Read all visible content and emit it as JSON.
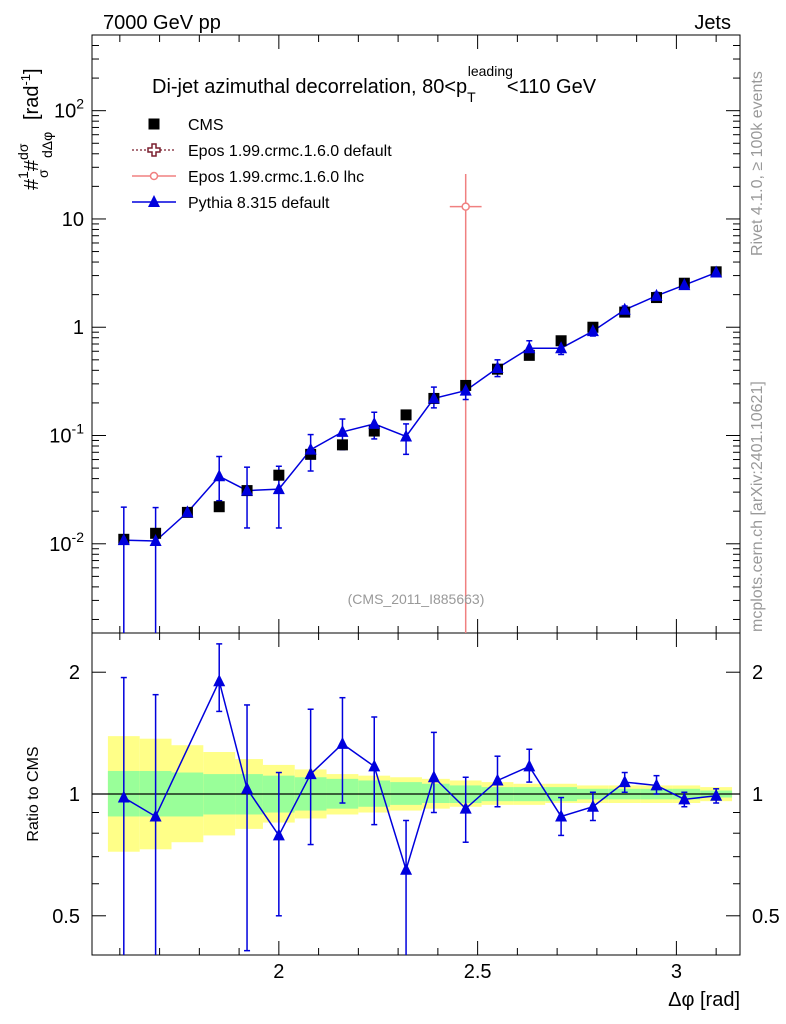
{
  "header": {
    "left": "7000 GeV pp",
    "right": "Jets"
  },
  "side_labels": {
    "rivet": "Rivet 4.1.0, ≥ 100k events",
    "mcplots": "mcplots.cern.ch [arXiv:2401.10621]"
  },
  "chart_data": [
    {
      "type": "scatter",
      "title": "Di-jet azimuthal decorrelation, 80<p_T^leading<110 GeV",
      "title_parts": {
        "pre": "Di-jet azimuthal decorrelation, 80<p",
        "sub": "T",
        "sup": "leading",
        "post": "<110 GeV"
      },
      "analysis_id": "(CMS_2011_I885663)",
      "ylabel": "1/σ dσ/dΔφ [rad⁻¹]",
      "ylabel_unit": "[rad",
      "ylabel_unit_exp": "-1",
      "yscale": "log",
      "xlim": [
        1.53,
        3.16
      ],
      "ylim": [
        0.0015,
        500
      ],
      "yticks": [
        {
          "value": 0.01,
          "base": "10",
          "exp": "-2"
        },
        {
          "value": 0.1,
          "base": "10",
          "exp": "-1"
        },
        {
          "value": 1,
          "label": "1"
        },
        {
          "value": 10,
          "label": "10"
        },
        {
          "value": 100,
          "base": "10",
          "exp": "2"
        }
      ],
      "legend": [
        {
          "name": "CMS",
          "marker": "square",
          "color": "#000000"
        },
        {
          "name": "Epos 1.99.crmc.1.6.0 default",
          "marker": "open-cross",
          "color": "#7a1f2e"
        },
        {
          "name": "Epos 1.99.crmc.1.6.0 lhc",
          "marker": "open-circle",
          "color": "#f08080"
        },
        {
          "name": "Pythia 8.315 default",
          "marker": "triangle",
          "color": "#0000dd"
        }
      ],
      "series": [
        {
          "name": "CMS",
          "x": [
            1.61,
            1.69,
            1.77,
            1.85,
            1.92,
            2.0,
            2.08,
            2.16,
            2.24,
            2.32,
            2.39,
            2.47,
            2.55,
            2.63,
            2.71,
            2.79,
            2.87,
            2.95,
            3.02,
            3.1
          ],
          "y": [
            0.011,
            0.0125,
            0.0195,
            0.022,
            0.031,
            0.043,
            0.067,
            0.082,
            0.11,
            0.155,
            0.22,
            0.29,
            0.41,
            0.55,
            0.75,
            1.0,
            1.38,
            1.88,
            2.55,
            3.25
          ]
        },
        {
          "name": "Epos 1.99.crmc.1.6.0 lhc",
          "x": [
            2.47
          ],
          "y": [
            13.0
          ],
          "yerr_low": [
            13.0
          ],
          "yerr_high": [
            13.0
          ],
          "xerr": [
            0.04
          ]
        },
        {
          "name": "Pythia 8.315 default",
          "x": [
            1.61,
            1.69,
            1.77,
            1.85,
            1.92,
            2.0,
            2.08,
            2.16,
            2.24,
            2.32,
            2.39,
            2.47,
            2.55,
            2.63,
            2.71,
            2.79,
            2.87,
            2.95,
            3.02,
            3.1
          ],
          "y": [
            0.0108,
            0.0106,
            0.0195,
            0.042,
            0.031,
            0.032,
            0.074,
            0.108,
            0.128,
            0.098,
            0.22,
            0.26,
            0.42,
            0.64,
            0.64,
            0.92,
            1.45,
            1.95,
            2.45,
            3.2
          ],
          "yerr_low": [
            0.0103,
            0.0104,
            0.0003,
            0.017,
            0.017,
            0.018,
            0.027,
            0.034,
            0.035,
            0.031,
            0.04,
            0.045,
            0.07,
            0.1,
            0.08,
            0.09,
            0.12,
            0.15,
            0.15,
            0.18
          ],
          "yerr_high": [
            0.011,
            0.011,
            0.0003,
            0.022,
            0.02,
            0.02,
            0.028,
            0.034,
            0.036,
            0.03,
            0.06,
            0.06,
            0.08,
            0.11,
            0.09,
            0.09,
            0.12,
            0.15,
            0.15,
            0.18
          ]
        }
      ]
    },
    {
      "type": "line",
      "ylabel": "Ratio to CMS",
      "xlabel": "Δφ [rad]",
      "yscale": "log",
      "xlim": [
        1.53,
        3.16
      ],
      "ylim": [
        0.4,
        2.5
      ],
      "xticks": [
        2,
        2.5,
        3
      ],
      "xtick_labels": [
        "2",
        "2.5",
        "3"
      ],
      "yticks": [
        0.5,
        1,
        2
      ],
      "ytick_labels": [
        "0.5",
        "1",
        "2"
      ],
      "bin_edges": [
        1.57,
        1.65,
        1.73,
        1.81,
        1.89,
        1.96,
        2.04,
        2.12,
        2.2,
        2.28,
        2.36,
        2.43,
        2.51,
        2.59,
        2.67,
        2.75,
        2.83,
        2.91,
        2.99,
        3.06,
        3.14
      ],
      "band_inner": {
        "color": "#99ff99",
        "low": [
          0.88,
          0.88,
          0.88,
          0.89,
          0.89,
          0.9,
          0.91,
          0.92,
          0.93,
          0.94,
          0.95,
          0.95,
          0.96,
          0.96,
          0.96,
          0.97,
          0.97,
          0.97,
          0.97,
          0.98
        ],
        "high": [
          1.14,
          1.14,
          1.13,
          1.12,
          1.12,
          1.11,
          1.1,
          1.09,
          1.08,
          1.07,
          1.06,
          1.05,
          1.04,
          1.04,
          1.04,
          1.03,
          1.03,
          1.03,
          1.03,
          1.02
        ]
      },
      "band_outer": {
        "color": "#ffff88",
        "low": [
          0.72,
          0.73,
          0.76,
          0.79,
          0.82,
          0.85,
          0.87,
          0.89,
          0.9,
          0.91,
          0.92,
          0.93,
          0.94,
          0.94,
          0.95,
          0.95,
          0.95,
          0.95,
          0.95,
          0.96
        ],
        "high": [
          1.39,
          1.37,
          1.32,
          1.27,
          1.22,
          1.18,
          1.15,
          1.12,
          1.11,
          1.1,
          1.09,
          1.08,
          1.07,
          1.06,
          1.06,
          1.05,
          1.05,
          1.05,
          1.05,
          1.04
        ]
      },
      "series": [
        {
          "name": "Pythia 8.315 default",
          "x": [
            1.61,
            1.69,
            1.85,
            1.92,
            2.0,
            2.08,
            2.16,
            2.24,
            2.32,
            2.39,
            2.47,
            2.55,
            2.63,
            2.71,
            2.79,
            2.87,
            2.95,
            3.02,
            3.1
          ],
          "y": [
            0.98,
            0.88,
            1.9,
            1.03,
            0.79,
            1.12,
            1.33,
            1.17,
            0.65,
            1.1,
            0.92,
            1.08,
            1.17,
            0.88,
            0.93,
            1.07,
            1.05,
            0.97,
            0.99
          ],
          "yerr_low": [
            0.6,
            0.52,
            0.3,
            0.62,
            0.29,
            0.37,
            0.38,
            0.33,
            0.29,
            0.2,
            0.16,
            0.15,
            0.1,
            0.09,
            0.07,
            0.06,
            0.05,
            0.04,
            0.04
          ],
          "yerr_high": [
            0.96,
            0.88,
            0.45,
            0.63,
            0.34,
            0.5,
            0.4,
            0.38,
            0.21,
            0.32,
            0.18,
            0.16,
            0.12,
            0.1,
            0.08,
            0.06,
            0.06,
            0.04,
            0.04
          ]
        }
      ]
    }
  ]
}
